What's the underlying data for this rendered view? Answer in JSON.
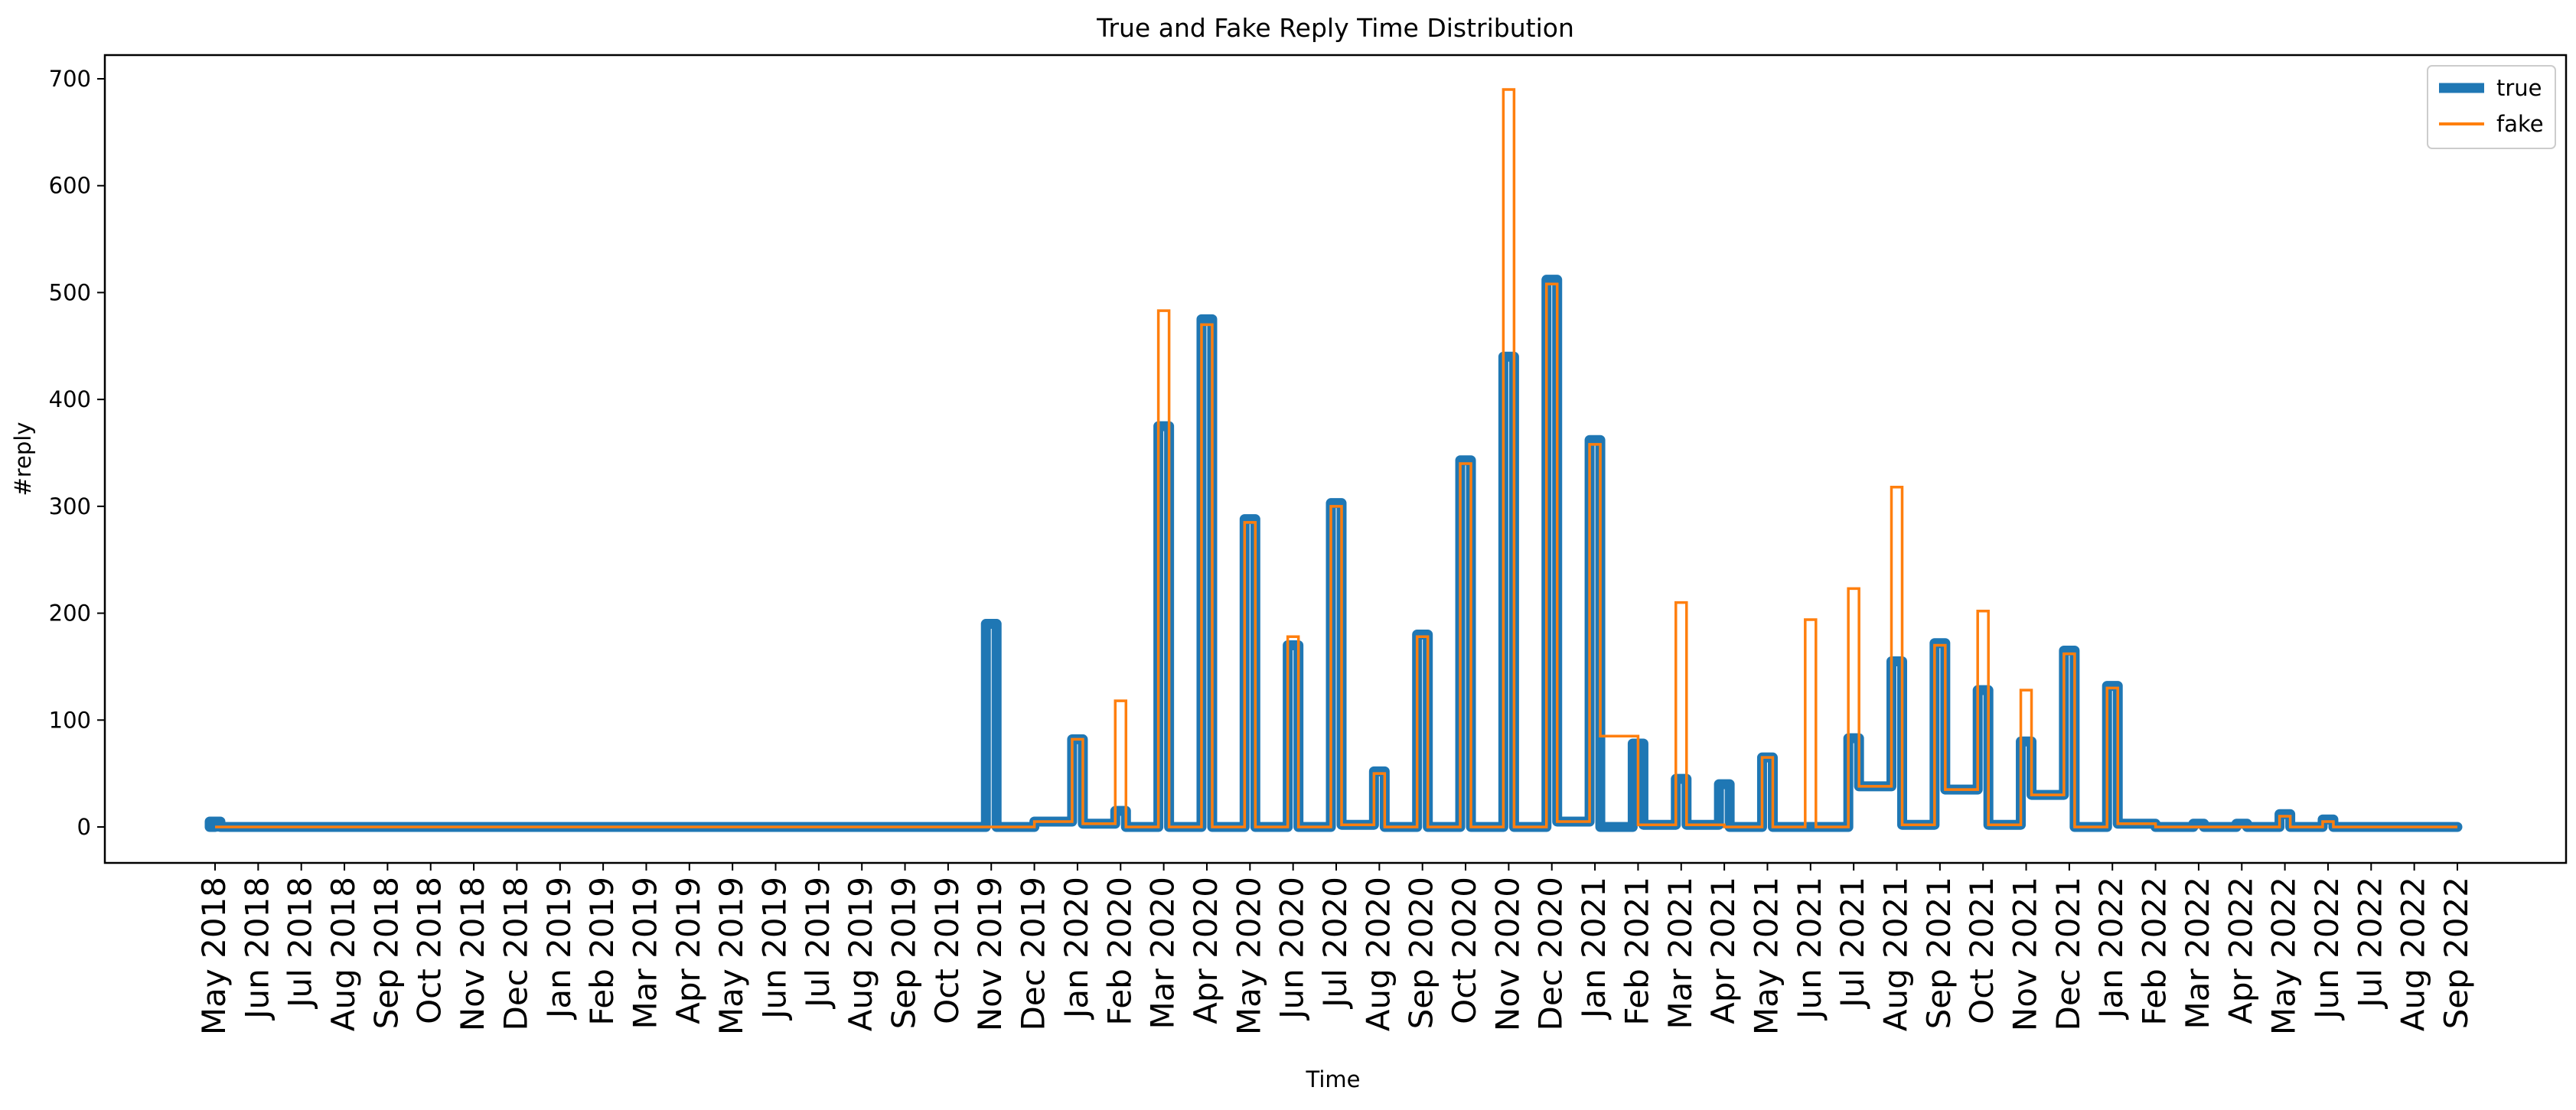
{
  "chart_data": {
    "type": "line",
    "title": "True and Fake Reply Time Distribution",
    "xlabel": "Time",
    "ylabel": "#reply",
    "ylim": [
      -35,
      730
    ],
    "yticks": [
      0,
      100,
      200,
      300,
      400,
      500,
      600,
      700
    ],
    "categories": [
      "May 2018",
      "Jun 2018",
      "Jul 2018",
      "Aug 2018",
      "Sep 2018",
      "Oct 2018",
      "Nov 2018",
      "Dec 2018",
      "Jan 2019",
      "Feb 2019",
      "Mar 2019",
      "Apr 2019",
      "May 2019",
      "Jun 2019",
      "Jul 2019",
      "Aug 2019",
      "Sep 2019",
      "Oct 2019",
      "Nov 2019",
      "Dec 2019",
      "Jan 2020",
      "Feb 2020",
      "Mar 2020",
      "Apr 2020",
      "May 2020",
      "Jun 2020",
      "Jul 2020",
      "Aug 2020",
      "Sep 2020",
      "Oct 2020",
      "Nov 2020",
      "Dec 2020",
      "Jan 2021",
      "Feb 2021",
      "Mar 2021",
      "Apr 2021",
      "May 2021",
      "Jun 2021",
      "Jul 2021",
      "Aug 2021",
      "Sep 2021",
      "Oct 2021",
      "Nov 2021",
      "Dec 2021",
      "Jan 2022",
      "Feb 2022",
      "Mar 2022",
      "Apr 2022",
      "May 2022",
      "Jun 2022",
      "Jul 2022",
      "Aug 2022",
      "Sep 2022"
    ],
    "legend": {
      "position": "top-right"
    },
    "series": [
      {
        "name": "true",
        "color": "#1f77b4",
        "baseline": [
          0,
          0,
          0,
          0,
          0,
          0,
          0,
          0,
          0,
          0,
          0,
          0,
          0,
          0,
          0,
          0,
          0,
          0,
          0,
          5,
          3,
          0,
          0,
          0,
          0,
          0,
          2,
          0,
          0,
          0,
          0,
          5,
          0,
          2,
          2,
          0,
          0,
          0,
          38,
          2,
          35,
          2,
          30,
          0,
          3,
          0,
          0,
          0,
          0,
          0,
          0,
          0,
          0
        ],
        "peaks": [
          5,
          0,
          0,
          0,
          0,
          0,
          0,
          0,
          0,
          0,
          0,
          0,
          0,
          0,
          0,
          0,
          0,
          0,
          190,
          5,
          82,
          15,
          375,
          475,
          288,
          170,
          303,
          52,
          180,
          343,
          440,
          512,
          362,
          78,
          45,
          40,
          65,
          0,
          83,
          155,
          172,
          128,
          80,
          165,
          132,
          3,
          3,
          3,
          12,
          7,
          0,
          0,
          0
        ]
      },
      {
        "name": "fake",
        "color": "#ff7f0e",
        "baseline": [
          0,
          0,
          0,
          0,
          0,
          0,
          0,
          0,
          0,
          0,
          0,
          0,
          0,
          0,
          0,
          0,
          0,
          0,
          0,
          5,
          3,
          0,
          0,
          0,
          0,
          0,
          2,
          0,
          0,
          0,
          0,
          5,
          85,
          2,
          2,
          0,
          0,
          0,
          38,
          2,
          35,
          2,
          30,
          0,
          3,
          0,
          0,
          0,
          0,
          0,
          0,
          0,
          0
        ],
        "peaks": [
          0,
          0,
          0,
          0,
          0,
          0,
          0,
          0,
          0,
          0,
          0,
          0,
          0,
          0,
          0,
          0,
          0,
          0,
          0,
          5,
          82,
          118,
          483,
          470,
          285,
          178,
          300,
          50,
          178,
          340,
          690,
          508,
          358,
          75,
          210,
          0,
          65,
          194,
          223,
          318,
          170,
          202,
          128,
          162,
          130,
          3,
          0,
          0,
          10,
          5,
          0,
          0,
          0
        ]
      }
    ]
  }
}
